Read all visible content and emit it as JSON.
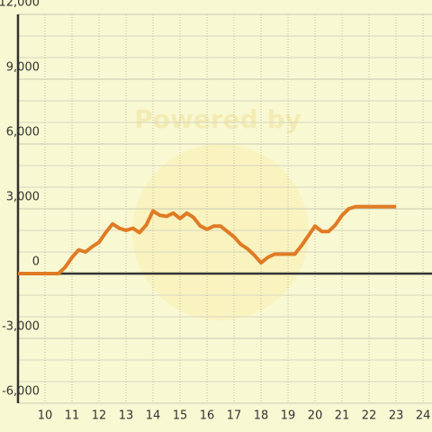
{
  "chart_data": {
    "type": "line",
    "watermark": "Powered by",
    "x": [
      9,
      10.5,
      10.75,
      11,
      11.25,
      11.5,
      11.75,
      12,
      12.25,
      12.5,
      12.75,
      13,
      13.25,
      13.5,
      13.75,
      14,
      14.25,
      14.5,
      14.75,
      15,
      15.25,
      15.5,
      15.75,
      16,
      16.25,
      16.5,
      16.75,
      17,
      17.25,
      17.5,
      17.75,
      18,
      18.25,
      18.5,
      18.75,
      19,
      19.25,
      19.5,
      19.75,
      20,
      20.25,
      20.5,
      20.75,
      21,
      21.25,
      21.5,
      22,
      22.5,
      23
    ],
    "series": [
      {
        "color": "#e07b24",
        "values": [
          0,
          0,
          300,
          750,
          1100,
          1000,
          1250,
          1450,
          1900,
          2300,
          2100,
          2000,
          2100,
          1900,
          2250,
          2900,
          2700,
          2650,
          2800,
          2550,
          2800,
          2600,
          2200,
          2050,
          2200,
          2200,
          1950,
          1700,
          1350,
          1150,
          850,
          500,
          750,
          900,
          900,
          900,
          900,
          1300,
          1750,
          2200,
          1950,
          1950,
          2250,
          2700,
          3000,
          3100,
          3100,
          3100,
          3100
        ]
      }
    ],
    "xlim": [
      9,
      24.33
    ],
    "ylim": [
      -6000,
      12000
    ],
    "xticks": [
      10,
      11,
      12,
      13,
      14,
      15,
      16,
      17,
      18,
      19,
      20,
      21,
      22,
      23,
      24
    ],
    "yticks": [
      {
        "value": -6000,
        "label": "-6,000"
      },
      {
        "value": -3000,
        "label": "-3,000"
      },
      {
        "value": 0,
        "label": "0"
      },
      {
        "value": 3000,
        "label": "3,000"
      },
      {
        "value": 6000,
        "label": "6,000"
      },
      {
        "value": 9000,
        "label": "9,000"
      },
      {
        "value": 12000,
        "label": "12,000"
      }
    ],
    "grid": true
  }
}
